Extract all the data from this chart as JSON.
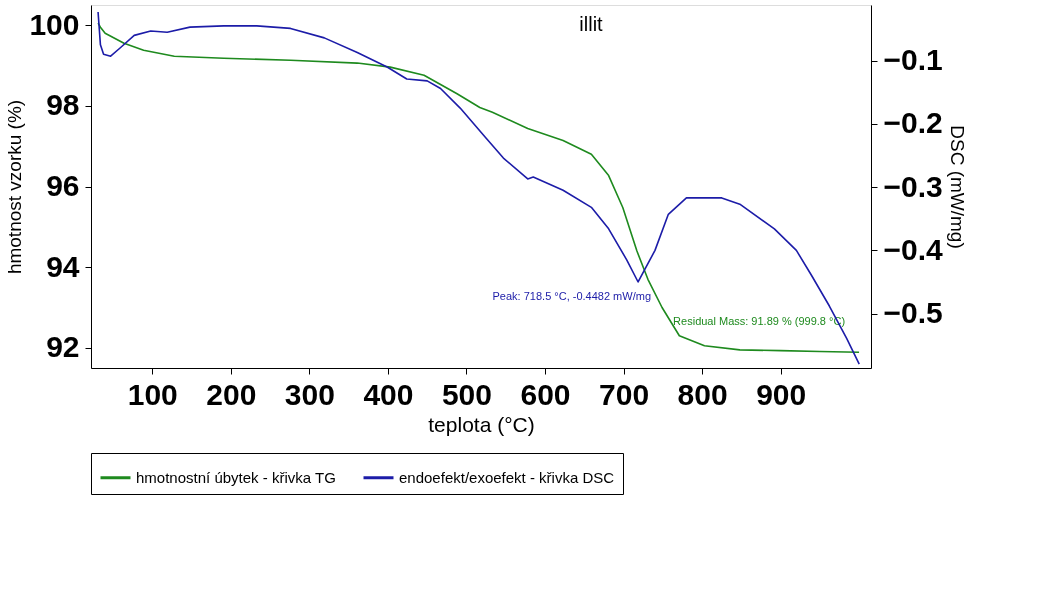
{
  "chart_data": {
    "type": "line",
    "title": "illit",
    "xlabel": "teplota (°C)",
    "ylabel": "hmotnost vzorku (%)",
    "y2label": "DSC (mW/mg)",
    "xlim": [
      22,
      1015
    ],
    "xticks": [
      100,
      200,
      300,
      400,
      500,
      600,
      700,
      800,
      900
    ],
    "ylim": [
      91.5,
      100.5
    ],
    "yticks": [
      92,
      94,
      96,
      98,
      100
    ],
    "y2lim": [
      -0.586,
      -0.012
    ],
    "y2ticks": [
      -0.1,
      -0.2,
      -0.3,
      -0.4,
      -0.5
    ],
    "grid": false,
    "legend": "bottom",
    "marker": "none",
    "line_style": "solid",
    "annotations": [
      "Peak: 718.5 °C, -0.4482 mW/mg",
      {
        "text": "Residual Mass: 91.89 % (999.8 °C)",
        "x": 999.8,
        "y": 91.89
      }
    ],
    "series": [
      {
        "name": "hmotnostní úbytek - křivka TG",
        "color": "#1e8a1e",
        "x": [
          31,
          34,
          40,
          64,
          89,
          128,
          191,
          276,
          361,
          403,
          446,
          488,
          517,
          533,
          578,
          623,
          659,
          681,
          699,
          717,
          731,
          749,
          771,
          803,
          848,
          900,
          950,
          999.8
        ],
        "values": [
          100.05,
          99.95,
          99.8,
          99.55,
          99.38,
          99.23,
          99.18,
          99.13,
          99.06,
          98.96,
          98.76,
          98.3,
          97.96,
          97.84,
          97.44,
          97.14,
          96.8,
          96.27,
          95.48,
          94.4,
          93.7,
          93.0,
          92.3,
          92.05,
          91.95,
          91.93,
          91.91,
          91.89
        ]
      },
      {
        "name": "endoefekt/exoefekt - křivka DSC",
        "color": "#1c1ca8",
        "axis": "y2",
        "x": [
          31,
          34,
          38,
          47,
          59,
          77,
          98,
          119,
          148,
          191,
          233,
          276,
          319,
          361,
          399,
          424,
          450,
          467,
          492,
          524,
          547,
          578,
          585,
          623,
          659,
          681,
          704,
          718.5,
          740,
          757,
          780,
          825,
          848,
          892,
          920,
          939,
          962,
          984,
          1000
        ],
        "values": [
          -0.023,
          -0.075,
          -0.09,
          -0.093,
          -0.08,
          -0.06,
          -0.053,
          -0.055,
          -0.047,
          -0.045,
          -0.045,
          -0.049,
          -0.064,
          -0.087,
          -0.11,
          -0.129,
          -0.132,
          -0.144,
          -0.175,
          -0.221,
          -0.254,
          -0.287,
          -0.284,
          -0.305,
          -0.332,
          -0.366,
          -0.415,
          -0.45,
          -0.4,
          -0.343,
          -0.317,
          -0.317,
          -0.327,
          -0.366,
          -0.4,
          -0.439,
          -0.488,
          -0.539,
          -0.58
        ]
      }
    ]
  }
}
